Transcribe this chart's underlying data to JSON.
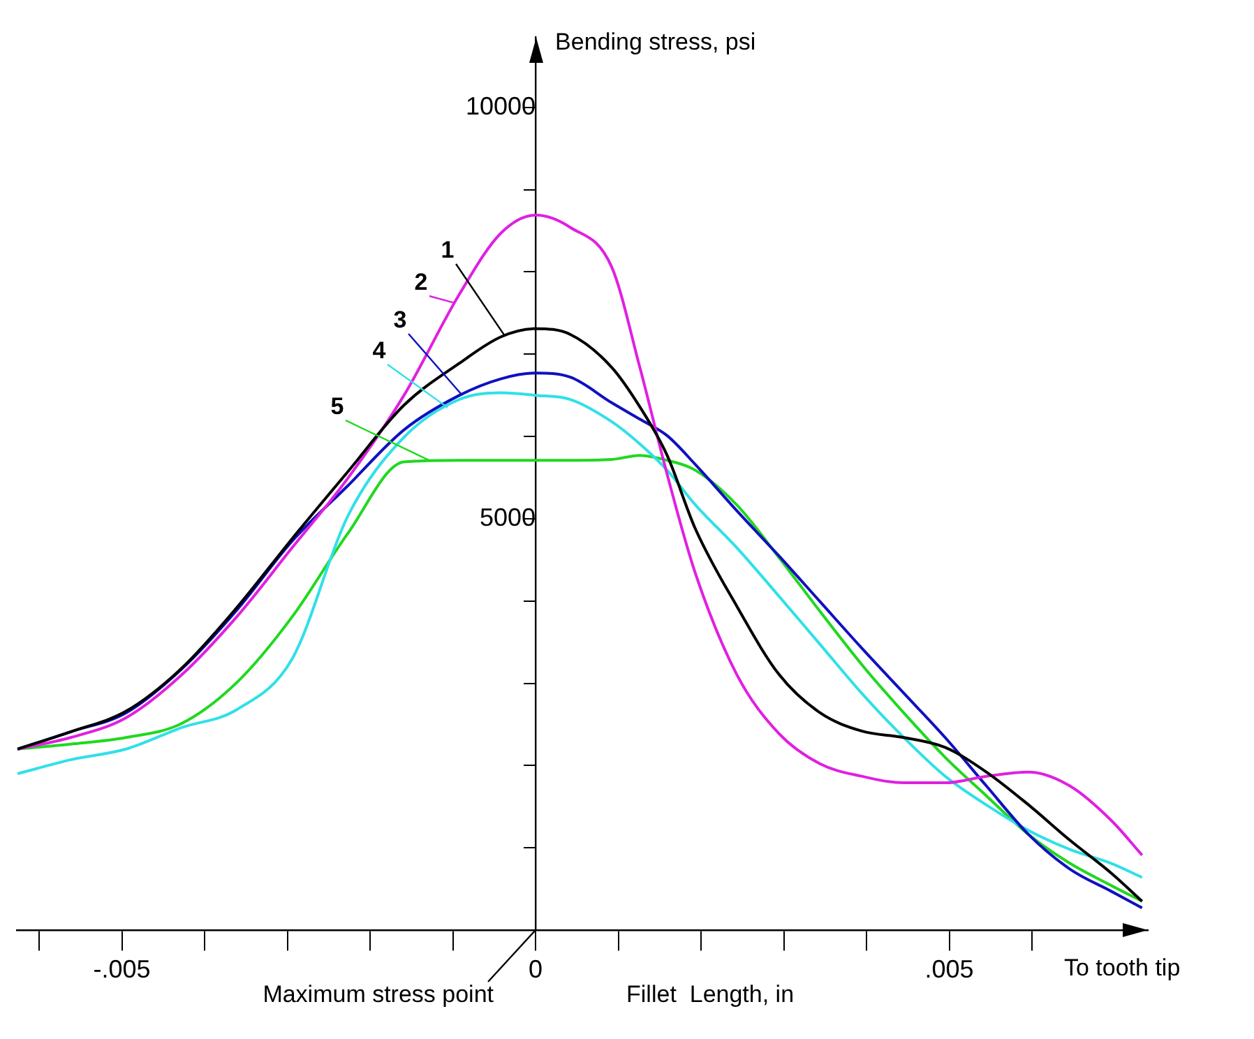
{
  "chart_data": {
    "type": "line",
    "ylabel": "Bending stress, psi",
    "xlabel": "Fillet  Length, in",
    "annotations": [
      "Maximum stress point",
      "To tooth tip"
    ],
    "x": [
      -0.00626,
      -0.00562,
      -0.00495,
      -0.00428,
      -0.00361,
      -0.00294,
      -0.00227,
      -0.00159,
      -0.00092,
      -0.00042,
      0,
      0.00042,
      0.00092,
      0.00126,
      0.00159,
      0.00193,
      0.00243,
      0.00294,
      0.00344,
      0.00394,
      0.00445,
      0.00495,
      0.00545,
      0.00596,
      0.00646,
      0.00696,
      0.00733
    ],
    "series": [
      {
        "name": "1",
        "color": "#000000",
        "values": [
          2200,
          2410,
          2660,
          3180,
          3920,
          4760,
          5570,
          6380,
          6890,
          7210,
          7310,
          7240,
          6840,
          6360,
          5770,
          4880,
          3940,
          3110,
          2640,
          2420,
          2340,
          2220,
          1920,
          1520,
          1090,
          690,
          350
        ]
      },
      {
        "name": "2",
        "color": "#e020e0",
        "values": [
          2200,
          2340,
          2580,
          3100,
          3810,
          4650,
          5490,
          6500,
          7730,
          8470,
          8690,
          8540,
          8060,
          6840,
          5540,
          4340,
          3110,
          2390,
          2020,
          1870,
          1790,
          1790,
          1870,
          1920,
          1750,
          1330,
          910
        ]
      },
      {
        "name": "3",
        "color": "#1010c0",
        "values": [
          2200,
          2410,
          2640,
          3170,
          3890,
          4730,
          5400,
          6080,
          6500,
          6700,
          6770,
          6720,
          6410,
          6210,
          6010,
          5660,
          5100,
          4550,
          3990,
          3430,
          2880,
          2340,
          1750,
          1160,
          740,
          470,
          270
        ]
      },
      {
        "name": "4",
        "color": "#30e0e8",
        "values": [
          1900,
          2070,
          2200,
          2460,
          2680,
          3300,
          5030,
          5990,
          6450,
          6530,
          6500,
          6450,
          6180,
          5910,
          5590,
          5170,
          4650,
          4060,
          3470,
          2880,
          2340,
          1870,
          1520,
          1210,
          980,
          810,
          640
        ]
      },
      {
        "name": "5",
        "color": "#20d820",
        "values": [
          2200,
          2260,
          2340,
          2510,
          3010,
          3810,
          4820,
          5690,
          5710,
          5710,
          5710,
          5710,
          5720,
          5770,
          5710,
          5590,
          5170,
          4530,
          3870,
          3230,
          2640,
          2100,
          1630,
          1160,
          810,
          540,
          350
        ]
      }
    ],
    "xlim": [
      -0.00627,
      0.0074
    ],
    "ylim": [
      0,
      10850
    ],
    "xticks": [
      {
        "value": -0.006,
        "label": null
      },
      {
        "value": -0.005,
        "label": "-.005"
      },
      {
        "value": -0.004,
        "label": null
      },
      {
        "value": -0.003,
        "label": null
      },
      {
        "value": -0.002,
        "label": null
      },
      {
        "value": -0.001,
        "label": null
      },
      0,
      {
        "value": 0.001,
        "label": null
      },
      {
        "value": 0.002,
        "label": null
      },
      {
        "value": 0.003,
        "label": null
      },
      {
        "value": 0.004,
        "label": null
      },
      {
        "value": 0.005,
        "label": ".005"
      },
      {
        "value": 0.006,
        "label": null
      }
    ],
    "yticks": [
      {
        "value": 1000,
        "label": null
      },
      {
        "value": 2000,
        "label": null
      },
      {
        "value": 3000,
        "label": null
      },
      {
        "value": 4000,
        "label": null
      },
      5000,
      {
        "value": 6000,
        "label": null
      },
      {
        "value": 7000,
        "label": null
      },
      {
        "value": 8000,
        "label": null
      },
      {
        "value": 9000,
        "label": null
      },
      10000
    ],
    "grid": false,
    "legend": false,
    "marker": "none",
    "line_style": "solid"
  }
}
